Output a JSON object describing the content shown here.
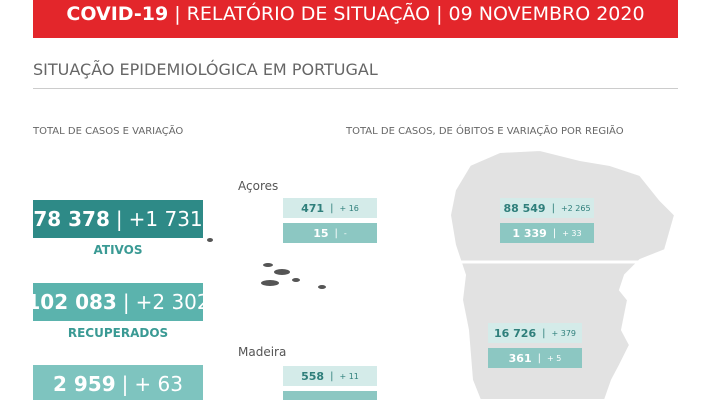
{
  "header": {
    "title": "COVID-19",
    "subtitle": "RELATÓRIO DE SITUAÇÃO",
    "date": "09 NOVEMBRO 2020"
  },
  "section_title": "SITUAÇÃO EPIDEMIOLÓGICA EM PORTUGAL",
  "left_label": "TOTAL DE CASOS E VARIAÇÃO",
  "right_label": "TOTAL DE CASOS, DE ÓBITOS E VARIAÇÃO POR REGIÃO",
  "stats": [
    {
      "value": "78 378",
      "change": "+1 731",
      "label": "ATIVOS"
    },
    {
      "value": "102 083",
      "change": "+2 302",
      "label": "RECUPERADOS"
    },
    {
      "value": "2 959",
      "change": "+ 63"
    }
  ],
  "regions": [
    {
      "name": "Açores",
      "cases": "471",
      "cases_change": "+ 16",
      "deaths": "15",
      "deaths_change": "-"
    },
    {
      "cases": "88 549",
      "cases_change": "+2 265",
      "deaths": "1 339",
      "deaths_change": "+ 33"
    },
    {
      "cases": "16 726",
      "cases_change": "+ 379",
      "deaths": "361",
      "deaths_change": "+ 5"
    },
    {
      "name": "Madeira",
      "cases": "558",
      "cases_change": "+ 11"
    }
  ]
}
